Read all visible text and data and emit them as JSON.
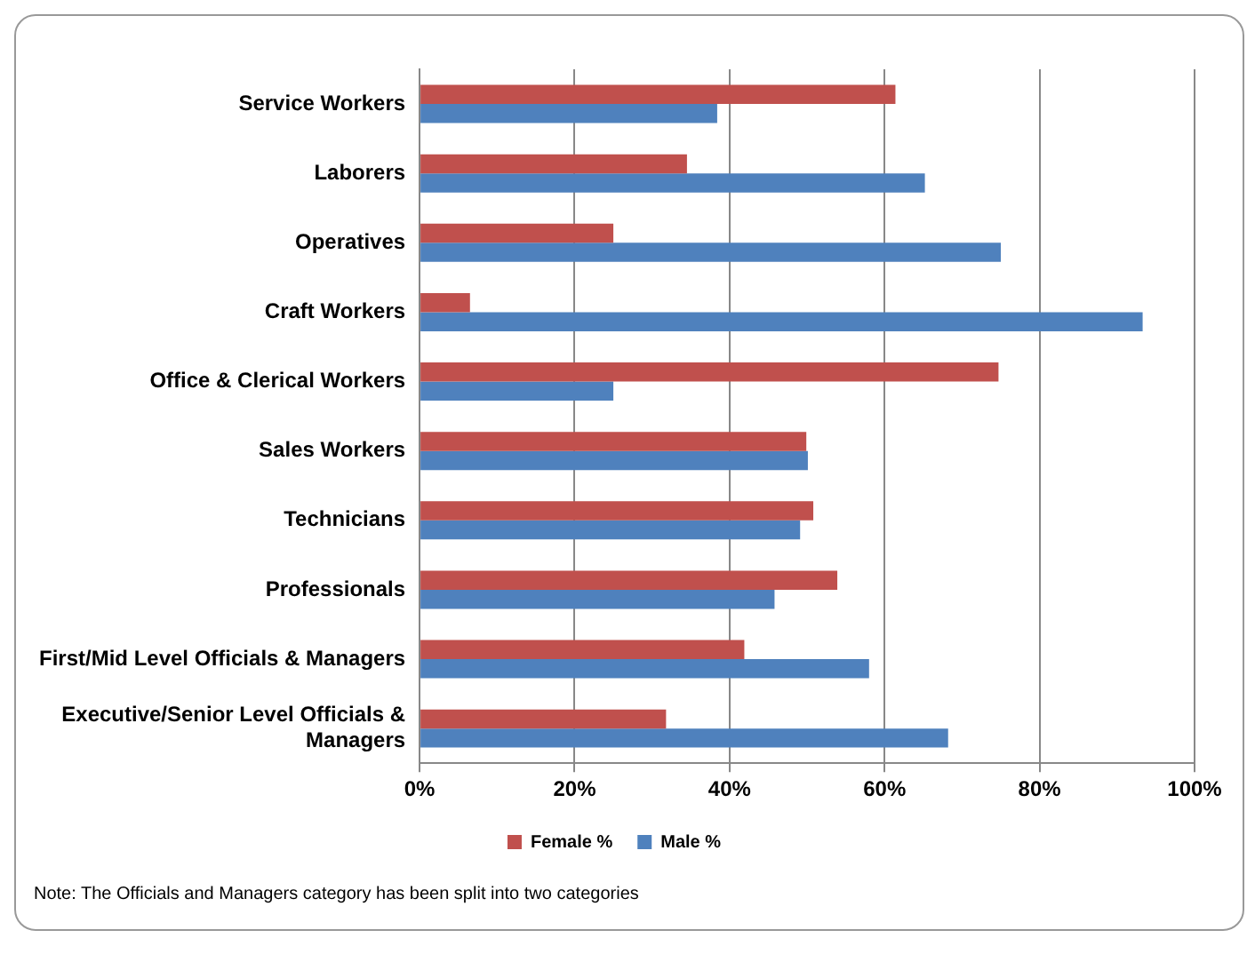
{
  "chart_data": {
    "type": "bar",
    "orientation": "horizontal",
    "categories": [
      "Service Workers",
      "Laborers",
      "Operatives",
      "Craft Workers",
      "Office & Clerical Workers",
      "Sales Workers",
      "Technicians",
      "Professionals",
      "First/Mid Level Officials & Managers",
      "Executive/Senior Level Officials & Managers"
    ],
    "series": [
      {
        "name": "Female %",
        "color": "#c0504d",
        "values": [
          61.4,
          34.5,
          25.0,
          6.5,
          74.7,
          49.9,
          50.8,
          53.9,
          41.9,
          31.8
        ]
      },
      {
        "name": "Male %",
        "color": "#4f81bd",
        "values": [
          38.4,
          65.2,
          75.0,
          93.3,
          25.0,
          50.1,
          49.1,
          45.8,
          58.0,
          68.2
        ]
      }
    ],
    "xlim": [
      0,
      100
    ],
    "xticks": [
      {
        "value": 0,
        "label": "0%"
      },
      {
        "value": 20,
        "label": "20%"
      },
      {
        "value": 40,
        "label": "40%"
      },
      {
        "value": 60,
        "label": "60%"
      },
      {
        "value": 80,
        "label": "80%"
      },
      {
        "value": 100,
        "label": "100%"
      }
    ],
    "grid": "x",
    "legend": "bottom",
    "annotations": [
      "Note: The Officials and Managers category has been split into two categories"
    ]
  }
}
